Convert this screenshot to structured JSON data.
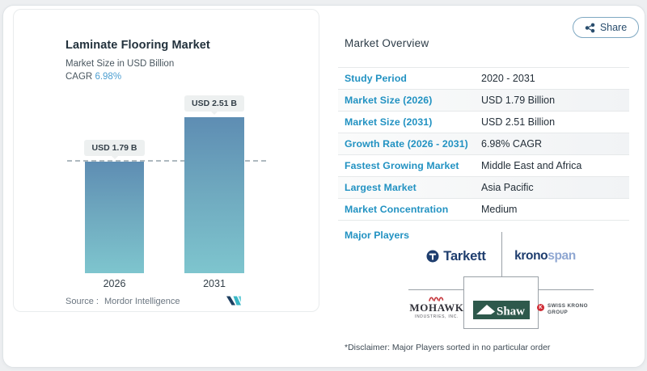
{
  "share": {
    "label": "Share"
  },
  "chart_data": {
    "type": "bar",
    "title": "Laminate Flooring Market",
    "subtitle": "Market Size in USD Billion",
    "cagr_label": "CAGR",
    "cagr_value": "6.98%",
    "categories": [
      "2026",
      "2031"
    ],
    "values": [
      1.79,
      2.51
    ],
    "value_labels": [
      "USD 1.79 B",
      "USD 2.51 B"
    ],
    "unit": "USD Billion",
    "reference_line_value": 1.79,
    "ylim": [
      0,
      2.9
    ],
    "grid": false,
    "legend": "none",
    "source_label": "Source :",
    "source_name": "Mordor Intelligence",
    "bar_gradient": [
      "#5e8db3",
      "#7ec5ce"
    ]
  },
  "overview": {
    "title": "Market Overview",
    "rows": [
      {
        "label": "Study Period",
        "value": "2020 - 2031"
      },
      {
        "label": "Market Size (2026)",
        "value": "USD 1.79 Billion"
      },
      {
        "label": "Market Size (2031)",
        "value": "USD 2.51 Billion"
      },
      {
        "label": "Growth Rate (2026 - 2031)",
        "value": "6.98% CAGR"
      },
      {
        "label": "Fastest Growing Market",
        "value": "Middle East and Africa"
      },
      {
        "label": "Largest Market",
        "value": "Asia Pacific"
      },
      {
        "label": "Market Concentration",
        "value": "Medium"
      }
    ],
    "major_players": {
      "label": "Major Players",
      "disclaimer": "*Disclaimer: Major Players sorted in no particular order",
      "logos": {
        "tarkett": "Tarkett",
        "kronospan_bold": "krono",
        "kronospan_light": "span",
        "mohawk": "MOHAWK",
        "mohawk_sub": "INDUSTRIES, INC.",
        "shaw": "Shaw",
        "swiss_krono_line1": "SWISS KRONO",
        "swiss_krono_line2": "GROUP"
      }
    }
  },
  "colors": {
    "accent_blue": "#2292c2",
    "cagr_blue": "#4c9ed1",
    "bar_top": "#5e8db3",
    "bar_bottom": "#7ec5ce",
    "share_border": "#7fa8c2",
    "navy_logo": "#1e3d6e",
    "shaw_green": "#2e594c",
    "mohawk_red": "#c5363c",
    "swiss_red": "#d02c35"
  }
}
